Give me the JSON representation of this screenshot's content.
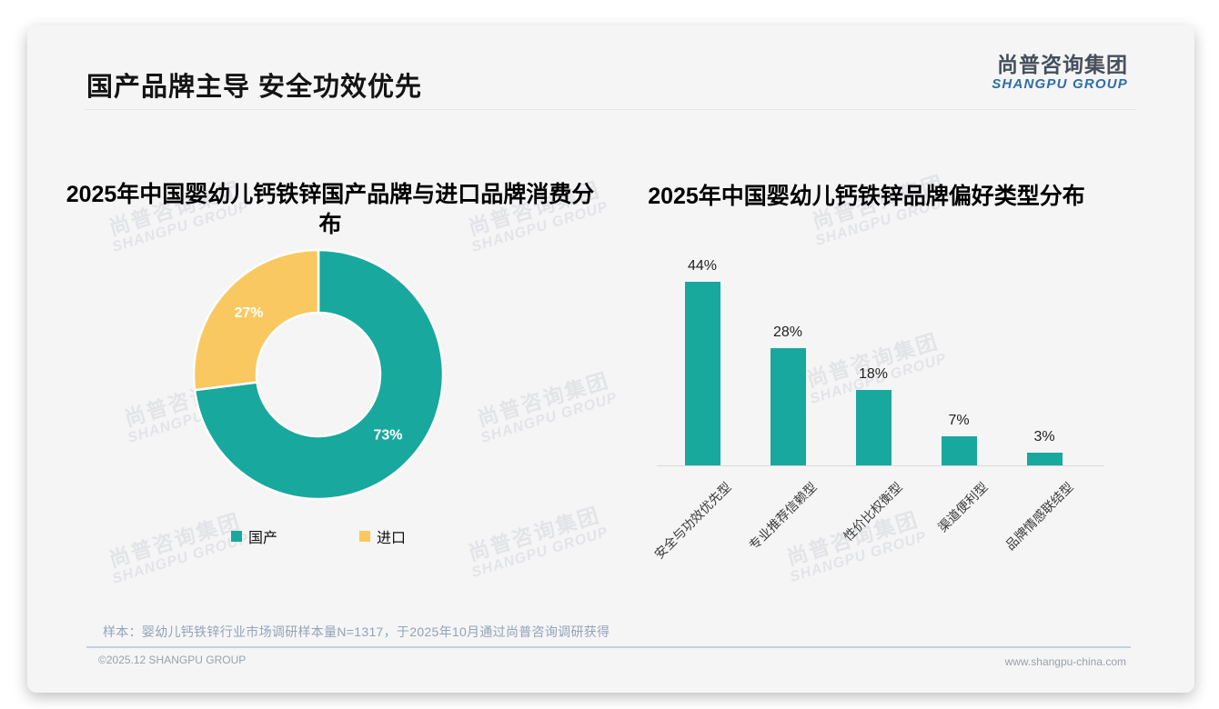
{
  "header": {
    "title": "国产品牌主导 安全功效优先"
  },
  "logo": {
    "cn": "尚普咨询集团",
    "en": "SHANGPU GROUP"
  },
  "watermark": {
    "cn": "尚普咨询集团",
    "en": "SHANGPU GROUP"
  },
  "footer": {
    "sample_note": "样本：婴幼儿钙铁锌行业市场调研样本量N=1317，于2025年10月通过尚普咨询调研获得",
    "copyright": "©2025.12 SHANGPU GROUP",
    "website": "www.shangpu-china.com"
  },
  "colors": {
    "teal": "#18a89e",
    "yellow": "#f9c860",
    "label_white": "#ffffff"
  },
  "chart_data": [
    {
      "type": "pie",
      "subtype": "donut",
      "title": "2025年中国婴幼儿钙铁锌国产品牌与进口品牌消费分布",
      "categories": [
        "国产",
        "进口"
      ],
      "values": [
        73,
        27
      ],
      "labels": [
        "73%",
        "27%"
      ],
      "unit": "%",
      "colors": [
        "#18a89e",
        "#f9c860"
      ],
      "legend_position": "bottom"
    },
    {
      "type": "bar",
      "title": "2025年中国婴幼儿钙铁锌品牌偏好类型分布",
      "categories": [
        "安全与功效优先型",
        "专业推荐信赖型",
        "性价比权衡型",
        "渠道便利型",
        "品牌情感联结型"
      ],
      "values": [
        44,
        28,
        18,
        7,
        3
      ],
      "labels": [
        "44%",
        "28%",
        "18%",
        "7%",
        "3%"
      ],
      "unit": "%",
      "bar_color": "#18a89e",
      "ylim": [
        0,
        46
      ],
      "grid": false,
      "legend_position": "none"
    }
  ]
}
